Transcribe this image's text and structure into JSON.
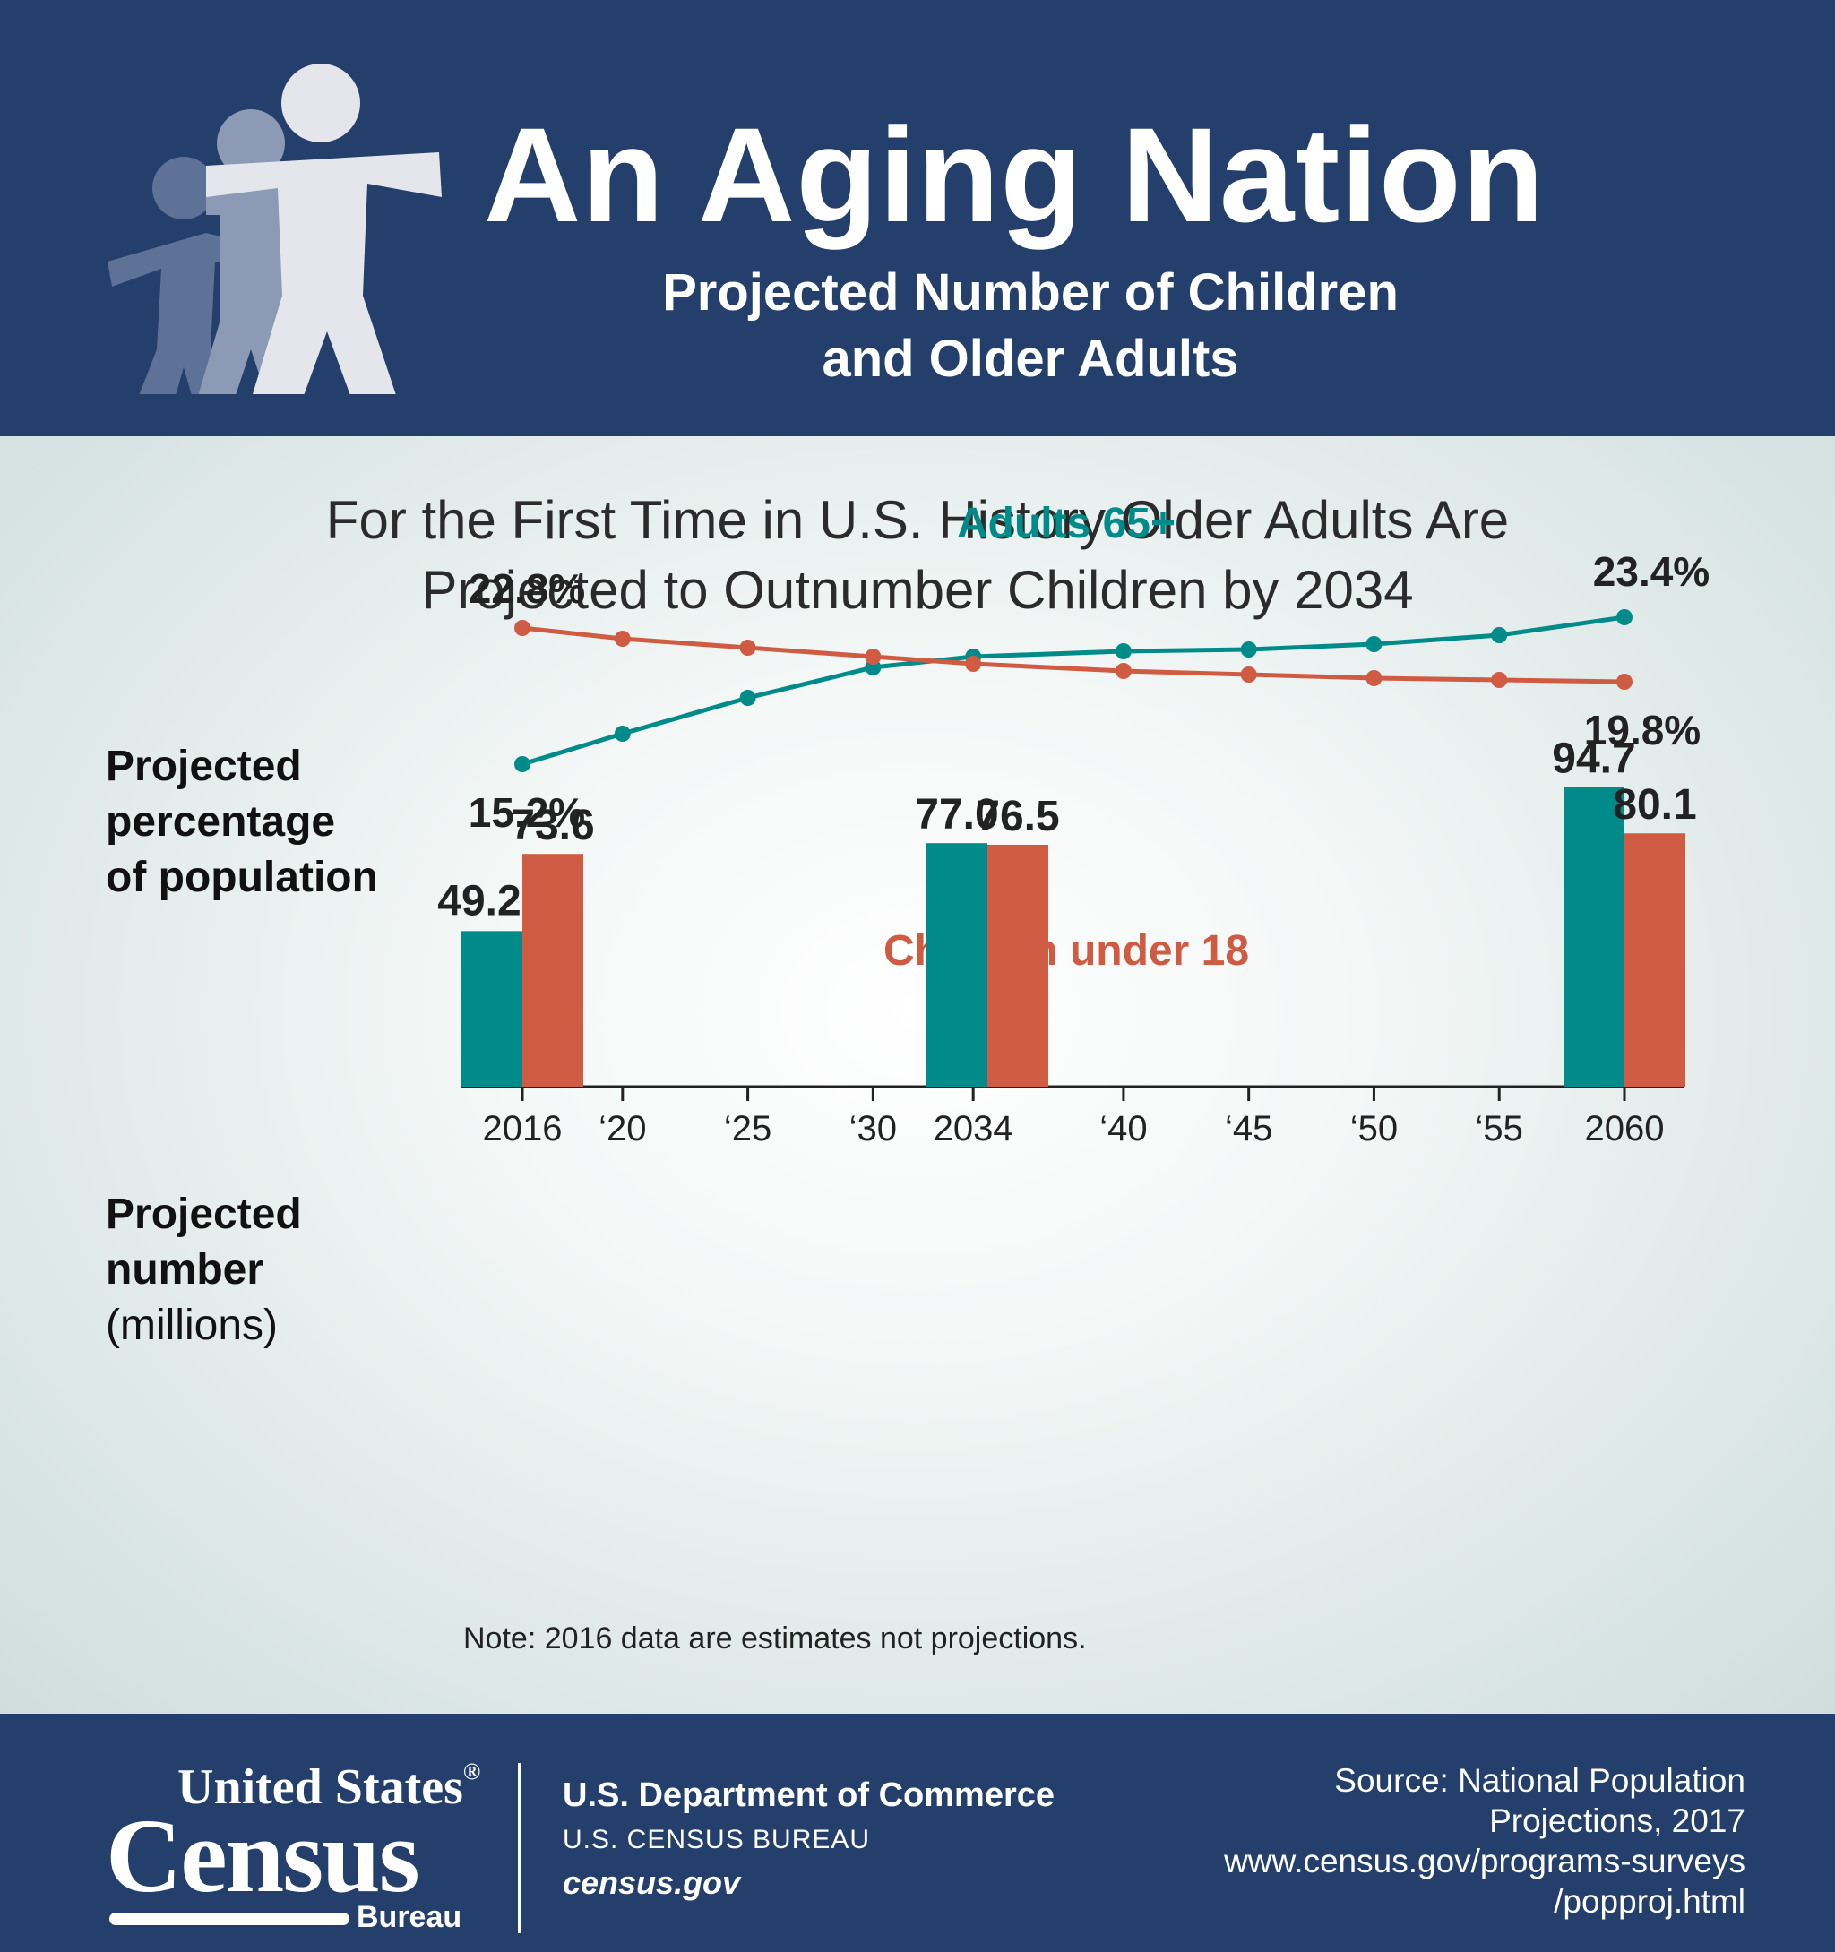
{
  "header": {
    "title": "An Aging Nation",
    "subtitle_line1": "Projected Number of Children",
    "subtitle_line2": "and Older Adults",
    "logo_icon": "people-figures-icon"
  },
  "headline": {
    "line1": "For the First Time in U.S. History Older Adults Are",
    "line2": "Projected to Outnumber Children by 2034"
  },
  "labels": {
    "percent_line1": "Projected",
    "percent_line2": "percentage",
    "percent_line3": "of population",
    "number_line1": "Projected",
    "number_line2": "number",
    "number_line3": "(millions)"
  },
  "note": "Note: 2016 data are estimates not projections.",
  "colors": {
    "header_bg": "#243f6b",
    "adults": "#008b8b",
    "children": "#d05b43"
  },
  "chart_data": [
    {
      "type": "line",
      "x": [
        2016,
        2020,
        2025,
        2030,
        2034,
        2040,
        2045,
        2050,
        2055,
        2060
      ],
      "ylim": [
        14,
        24.5
      ],
      "series": [
        {
          "name": "Adults 65+",
          "color": "#008b8b",
          "values": [
            15.2,
            16.9,
            18.9,
            20.6,
            21.2,
            21.5,
            21.6,
            21.9,
            22.4,
            23.4
          ],
          "labels": {
            "first": "15.2%",
            "last": "23.4%"
          }
        },
        {
          "name": "Children under 18",
          "color": "#d05b43",
          "values": [
            22.8,
            22.2,
            21.7,
            21.2,
            20.8,
            20.4,
            20.2,
            20.0,
            19.9,
            19.8
          ],
          "labels": {
            "first": "22.8%",
            "last": "19.8%"
          }
        }
      ]
    },
    {
      "type": "bar",
      "categories": [
        "2016",
        "2034",
        "2060"
      ],
      "ylim": [
        0,
        100
      ],
      "series": [
        {
          "name": "Adults 65+",
          "color": "#008b8b",
          "values": [
            49.2,
            77.0,
            94.7
          ],
          "value_labels": [
            "49.2",
            "77.0",
            "94.7"
          ]
        },
        {
          "name": "Children under 18",
          "color": "#d05b43",
          "values": [
            73.6,
            76.5,
            80.1
          ],
          "value_labels": [
            "73.6",
            "76.5",
            "80.1"
          ]
        }
      ],
      "x_ticks": [
        "2016",
        "‘20",
        "‘25",
        "‘30",
        "2034",
        "‘40",
        "‘45",
        "‘50",
        "‘55",
        "2060"
      ],
      "x_tick_years": [
        2016,
        2020,
        2025,
        2030,
        2034,
        2040,
        2045,
        2050,
        2055,
        2060
      ]
    }
  ],
  "footer": {
    "logo_united": "United States",
    "logo_registered": "®",
    "logo_census": "Census",
    "logo_bureau": "Bureau",
    "dept": "U.S. Department of Commerce",
    "bureau": "U.S. CENSUS BUREAU",
    "site": "census.gov",
    "source_line1": "Source: National Population",
    "source_line2": "Projections, 2017",
    "source_line3": "www.census.gov/programs-surveys",
    "source_line4": "/popproj.html"
  }
}
